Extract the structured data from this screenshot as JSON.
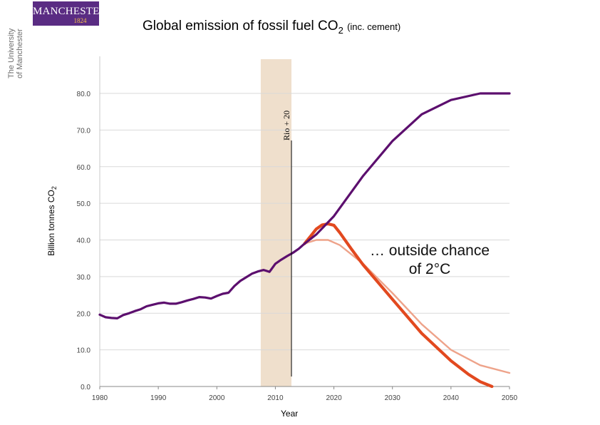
{
  "logo": {
    "name": "MANCHESTER",
    "year": "1824",
    "university_line1": "The University",
    "university_line2": "of Manchester"
  },
  "title": {
    "main": "Global emission of fossil fuel CO",
    "subscript": "2",
    "note": "(inc. cement)"
  },
  "colors": {
    "purple_series": "#5c0f6e",
    "orange_series": "#e2491f",
    "light_orange_series": "#eea38a",
    "highlight_band": "#efdfcc",
    "grid": "#d9d9d9"
  },
  "chart_data": {
    "type": "line",
    "xlabel": "Year",
    "ylabel": "Billion tonnes CO",
    "ylabel_subscript": "2",
    "xlim": [
      1980,
      2050
    ],
    "ylim": [
      0,
      80
    ],
    "grid": "horizontal",
    "x_ticks": [
      "1980",
      "1990",
      "2000",
      "2010",
      "2020",
      "2030",
      "2040",
      "2050"
    ],
    "y_ticks": [
      "0.0",
      "10.0",
      "20.0",
      "30.0",
      "40.0",
      "50.0",
      "60.0",
      "70.0",
      "80.0"
    ],
    "series": [
      {
        "color": "#5c0f6e",
        "points": [
          [
            1980,
            19.6
          ],
          [
            1981,
            18.9
          ],
          [
            1982,
            18.7
          ],
          [
            1983,
            18.6
          ],
          [
            1984,
            19.5
          ],
          [
            1985,
            20.0
          ],
          [
            1986,
            20.6
          ],
          [
            1987,
            21.1
          ],
          [
            1988,
            21.9
          ],
          [
            1989,
            22.3
          ],
          [
            1990,
            22.7
          ],
          [
            1991,
            22.9
          ],
          [
            1992,
            22.6
          ],
          [
            1993,
            22.6
          ],
          [
            1994,
            23.0
          ],
          [
            1995,
            23.5
          ],
          [
            1996,
            23.9
          ],
          [
            1997,
            24.4
          ],
          [
            1998,
            24.3
          ],
          [
            1999,
            24.0
          ],
          [
            2000,
            24.7
          ],
          [
            2001,
            25.3
          ],
          [
            2002,
            25.6
          ],
          [
            2003,
            27.4
          ],
          [
            2004,
            28.8
          ],
          [
            2005,
            29.8
          ],
          [
            2006,
            30.8
          ],
          [
            2007,
            31.4
          ],
          [
            2008,
            31.8
          ],
          [
            2009,
            31.3
          ],
          [
            2010,
            33.5
          ],
          [
            2011,
            34.6
          ],
          [
            2012,
            35.6
          ],
          [
            2013,
            36.5
          ],
          [
            2014,
            37.6
          ],
          [
            2015,
            39.0
          ],
          [
            2017,
            41.5
          ],
          [
            2020,
            46.5
          ],
          [
            2025,
            57.5
          ],
          [
            2030,
            67.0
          ],
          [
            2035,
            74.3
          ],
          [
            2040,
            78.2
          ],
          [
            2045,
            80.0
          ],
          [
            2050,
            80.0
          ]
        ]
      },
      {
        "color": "#e2491f",
        "points": [
          [
            2015,
            39.0
          ],
          [
            2016,
            41.0
          ],
          [
            2017,
            43.0
          ],
          [
            2018,
            44.1
          ],
          [
            2019,
            44.4
          ],
          [
            2020,
            44.0
          ],
          [
            2021,
            42.0
          ],
          [
            2023,
            37.5
          ],
          [
            2025,
            33.2
          ],
          [
            2030,
            23.8
          ],
          [
            2035,
            14.5
          ],
          [
            2040,
            7.0
          ],
          [
            2043,
            3.3
          ],
          [
            2045,
            1.3
          ],
          [
            2047,
            0.0
          ]
        ]
      },
      {
        "color": "#eea38a",
        "points": [
          [
            2015,
            39.0
          ],
          [
            2017,
            40.0
          ],
          [
            2019,
            40.0
          ],
          [
            2021,
            38.6
          ],
          [
            2025,
            33.5
          ],
          [
            2030,
            25.5
          ],
          [
            2035,
            17.0
          ],
          [
            2040,
            10.0
          ],
          [
            2045,
            5.8
          ],
          [
            2050,
            3.7
          ]
        ]
      }
    ],
    "annotations": {
      "band_label": "Rio + 20",
      "band_years": [
        2007.5,
        2012.75
      ],
      "marker_year": 2012.75,
      "callout_line1": "… outside chance",
      "callout_line2": "of 2°C"
    }
  }
}
